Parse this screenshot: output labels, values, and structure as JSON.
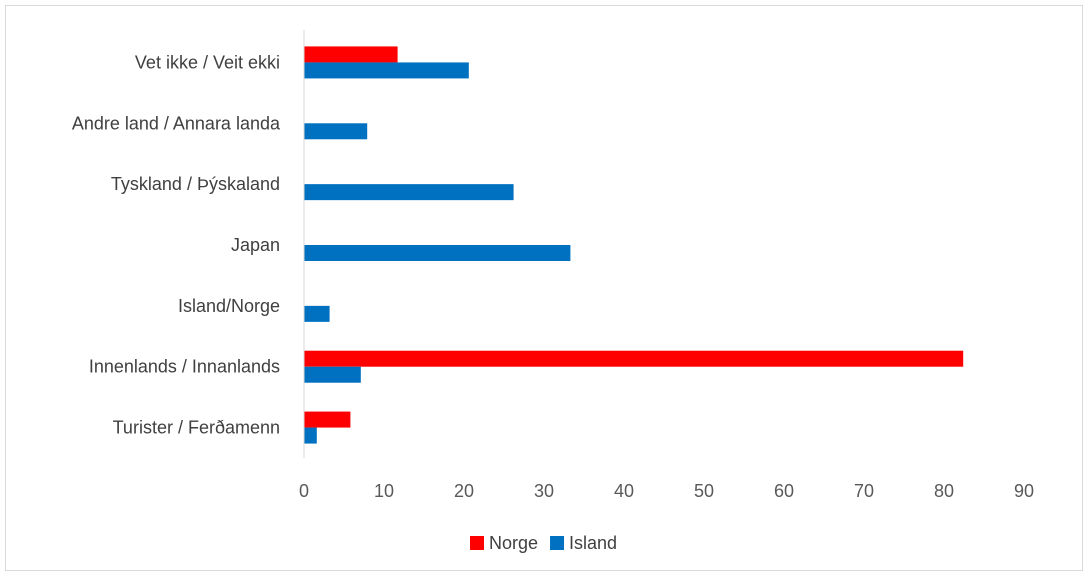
{
  "chart_data": {
    "type": "bar",
    "orientation": "horizontal",
    "categories": [
      "Vet ikke / Veit ekki",
      "Andre land / Annara landa",
      "Tyskland / Þýskaland",
      "Japan",
      "Island/Norge",
      "Innenlands / Innanlands",
      "Turister / Ferðamenn"
    ],
    "series": [
      {
        "name": "Norge",
        "color": "#ff0000",
        "values": [
          11.7,
          0,
          0,
          0,
          0,
          82.4,
          5.8
        ]
      },
      {
        "name": "Island",
        "color": "#0070c0",
        "values": [
          20.6,
          7.9,
          26.2,
          33.3,
          3.2,
          7.1,
          1.6
        ]
      }
    ],
    "xlim": [
      0,
      90
    ],
    "xticks": [
      0,
      10,
      20,
      30,
      40,
      50,
      60,
      70,
      80,
      90
    ],
    "grid": false,
    "legend_position": "bottom"
  }
}
